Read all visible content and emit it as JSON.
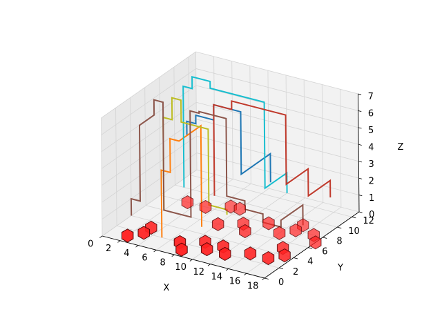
{
  "chart_data": {
    "type": "line3d",
    "title": "",
    "xlabel": "X",
    "ylabel": "Y",
    "zlabel": "Z",
    "xlim": [
      0,
      18
    ],
    "ylim": [
      0,
      13
    ],
    "zlim": [
      0,
      7
    ],
    "xticks": [
      "0",
      "2",
      "4",
      "6",
      "8",
      "10",
      "12",
      "14",
      "16",
      "18"
    ],
    "yticks": [
      "0",
      "2",
      "4",
      "6",
      "8",
      "10",
      "12"
    ],
    "zticks": [
      "0",
      "1",
      "2",
      "3",
      "4",
      "5",
      "6",
      "7"
    ],
    "grid": true,
    "legend": "none",
    "colors": {
      "pane": "#f2f2f2",
      "pane_side": "#e9e9e9",
      "grid": "#d4d4d4",
      "marker_fill": "#ff2020",
      "marker_edge": "#4a0000"
    },
    "series": [
      {
        "color": "#1f77b4",
        "points": [
          [
            9,
            12,
            0.8
          ],
          [
            9,
            12,
            2.5
          ],
          [
            9,
            8,
            2.5
          ],
          [
            9,
            8,
            6.2
          ],
          [
            6,
            8,
            6.2
          ],
          [
            6,
            8,
            5.3
          ],
          [
            4,
            8,
            5.3
          ],
          [
            4,
            8,
            4.8
          ],
          [
            3,
            8,
            4.8
          ],
          [
            3,
            8,
            4.0
          ]
        ]
      },
      {
        "color": "#ff7f0e",
        "points": [
          [
            7,
            5,
            0
          ],
          [
            7,
            5,
            6.0
          ],
          [
            7,
            2,
            6.0
          ],
          [
            6,
            2,
            6.0
          ],
          [
            6,
            2,
            4.0
          ],
          [
            5,
            2,
            4.0
          ],
          [
            5,
            2,
            0
          ]
        ]
      },
      {
        "color": "#17becf",
        "points": [
          [
            10,
            13,
            0
          ],
          [
            10,
            13,
            1.2
          ],
          [
            10,
            10,
            1.2
          ],
          [
            10,
            10,
            6.3
          ],
          [
            4,
            10,
            6.3
          ],
          [
            4,
            10,
            6.7
          ],
          [
            2,
            10,
            6.7
          ],
          [
            2,
            10,
            6.0
          ],
          [
            1,
            10,
            6.0
          ],
          [
            1,
            10,
            0
          ]
        ]
      },
      {
        "color": "#bcbd22",
        "points": [
          [
            9,
            6,
            0.7
          ],
          [
            9,
            6,
            1.0
          ],
          [
            7,
            6,
            1.0
          ],
          [
            7,
            6,
            5.5
          ],
          [
            4,
            6,
            5.5
          ],
          [
            4,
            6,
            6.8
          ],
          [
            3,
            6,
            6.8
          ],
          [
            3,
            6,
            5.5
          ],
          [
            2,
            6,
            5.5
          ],
          [
            2,
            6,
            0
          ]
        ]
      },
      {
        "color": "#c0392b",
        "points": [
          [
            14,
            14,
            0
          ],
          [
            14,
            14,
            1.0
          ],
          [
            14,
            11,
            1.0
          ],
          [
            14,
            11,
            2.6
          ],
          [
            14,
            8,
            2.6
          ],
          [
            14,
            8,
            6.7
          ],
          [
            8,
            8,
            6.7
          ],
          [
            8,
            8,
            6.2
          ],
          [
            6,
            8,
            6.2
          ],
          [
            6,
            8,
            0.8
          ]
        ]
      },
      {
        "color": "#8c564b",
        "points": [
          [
            15,
            9,
            0
          ],
          [
            15,
            9,
            1.2
          ],
          [
            15,
            6,
            1.2
          ],
          [
            15,
            6,
            0.8
          ],
          [
            13,
            6,
            0.8
          ],
          [
            13,
            6,
            1.3
          ],
          [
            11,
            6,
            1.3
          ],
          [
            11,
            6,
            1.8
          ],
          [
            9,
            6,
            1.8
          ],
          [
            9,
            6,
            6.4
          ],
          [
            6,
            6,
            6.4
          ],
          [
            6,
            6,
            6.3
          ],
          [
            5,
            6,
            6.3
          ],
          [
            5,
            6,
            0
          ],
          [
            2,
            6,
            0
          ],
          [
            2,
            6,
            6.4
          ],
          [
            1,
            6,
            6.4
          ],
          [
            1,
            6,
            5.5
          ],
          [
            1,
            4,
            5.5
          ],
          [
            1,
            4,
            1.0
          ],
          [
            0,
            4,
            1.0
          ],
          [
            0,
            4,
            0
          ]
        ]
      }
    ],
    "markers": [
      [
        2,
        1,
        0
      ],
      [
        3,
        2,
        0
      ],
      [
        3,
        3,
        0
      ],
      [
        8,
        6,
        0
      ],
      [
        7,
        2,
        0
      ],
      [
        8,
        1,
        0
      ],
      [
        9,
        3,
        0
      ],
      [
        11,
        3,
        0
      ],
      [
        12,
        2,
        0
      ],
      [
        14,
        3,
        0
      ],
      [
        16,
        3,
        0
      ],
      [
        17,
        4,
        0
      ],
      [
        16,
        5,
        0
      ],
      [
        18,
        7,
        0
      ],
      [
        17,
        8,
        0
      ],
      [
        15,
        8,
        0
      ],
      [
        12,
        8,
        0
      ],
      [
        10,
        7,
        0
      ],
      [
        8,
        9,
        0
      ],
      [
        7,
        9,
        0
      ],
      [
        5,
        8,
        0
      ],
      [
        3,
        8,
        0
      ],
      [
        11,
        6,
        0
      ],
      [
        15,
        9,
        0
      ],
      [
        14,
        7,
        0
      ],
      [
        10,
        2,
        0
      ]
    ]
  }
}
